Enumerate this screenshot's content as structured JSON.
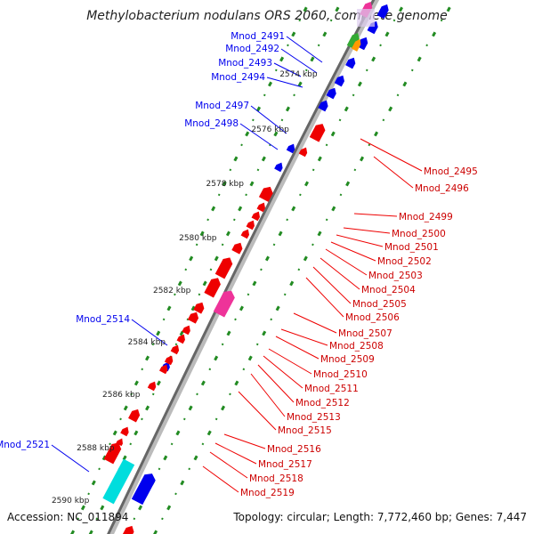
{
  "title": "Methylobacterium nodulans ORS 2060, complete genome",
  "footer": {
    "accession": "Accession: NC_011894",
    "summary": "Topology: circular; Length: 7,772,460 bp; Genes: 7,447"
  },
  "colors": {
    "minus_strand": "#0000ee",
    "plus_strand": "#ee0000",
    "backbone": "#888888",
    "tick_dot": "#228b22",
    "highlight_pink": "#ee3399",
    "highlight_cyan": "#00dddd",
    "highlight_orange": "#ff9900",
    "highlight_green": "#33aa33"
  },
  "scale": {
    "labels": [
      "2574 kbp",
      "2576 kbp",
      "2578 kbp",
      "2580 kbp",
      "2582 kbp",
      "2584 kbp",
      "2586 kbp",
      "2588 kbp",
      "2590 kbp"
    ]
  },
  "genes_left": [
    {
      "label": "Mnod_2491"
    },
    {
      "label": "Mnod_2492"
    },
    {
      "label": "Mnod_2493"
    },
    {
      "label": "Mnod_2494"
    },
    {
      "label": "Mnod_2497"
    },
    {
      "label": "Mnod_2498"
    },
    {
      "label": "Mnod_2514"
    },
    {
      "label": "Mnod_2521"
    }
  ],
  "genes_right": [
    {
      "label": "Mnod_2495"
    },
    {
      "label": "Mnod_2496"
    },
    {
      "label": "Mnod_2499"
    },
    {
      "label": "Mnod_2500"
    },
    {
      "label": "Mnod_2501"
    },
    {
      "label": "Mnod_2502"
    },
    {
      "label": "Mnod_2503"
    },
    {
      "label": "Mnod_2504"
    },
    {
      "label": "Mnod_2505"
    },
    {
      "label": "Mnod_2506"
    },
    {
      "label": "Mnod_2507"
    },
    {
      "label": "Mnod_2508"
    },
    {
      "label": "Mnod_2509"
    },
    {
      "label": "Mnod_2510"
    },
    {
      "label": "Mnod_2511"
    },
    {
      "label": "Mnod_2512"
    },
    {
      "label": "Mnod_2513"
    },
    {
      "label": "Mnod_2515"
    },
    {
      "label": "Mnod_2516"
    },
    {
      "label": "Mnod_2517"
    },
    {
      "label": "Mnod_2518"
    },
    {
      "label": "Mnod_2519"
    }
  ]
}
